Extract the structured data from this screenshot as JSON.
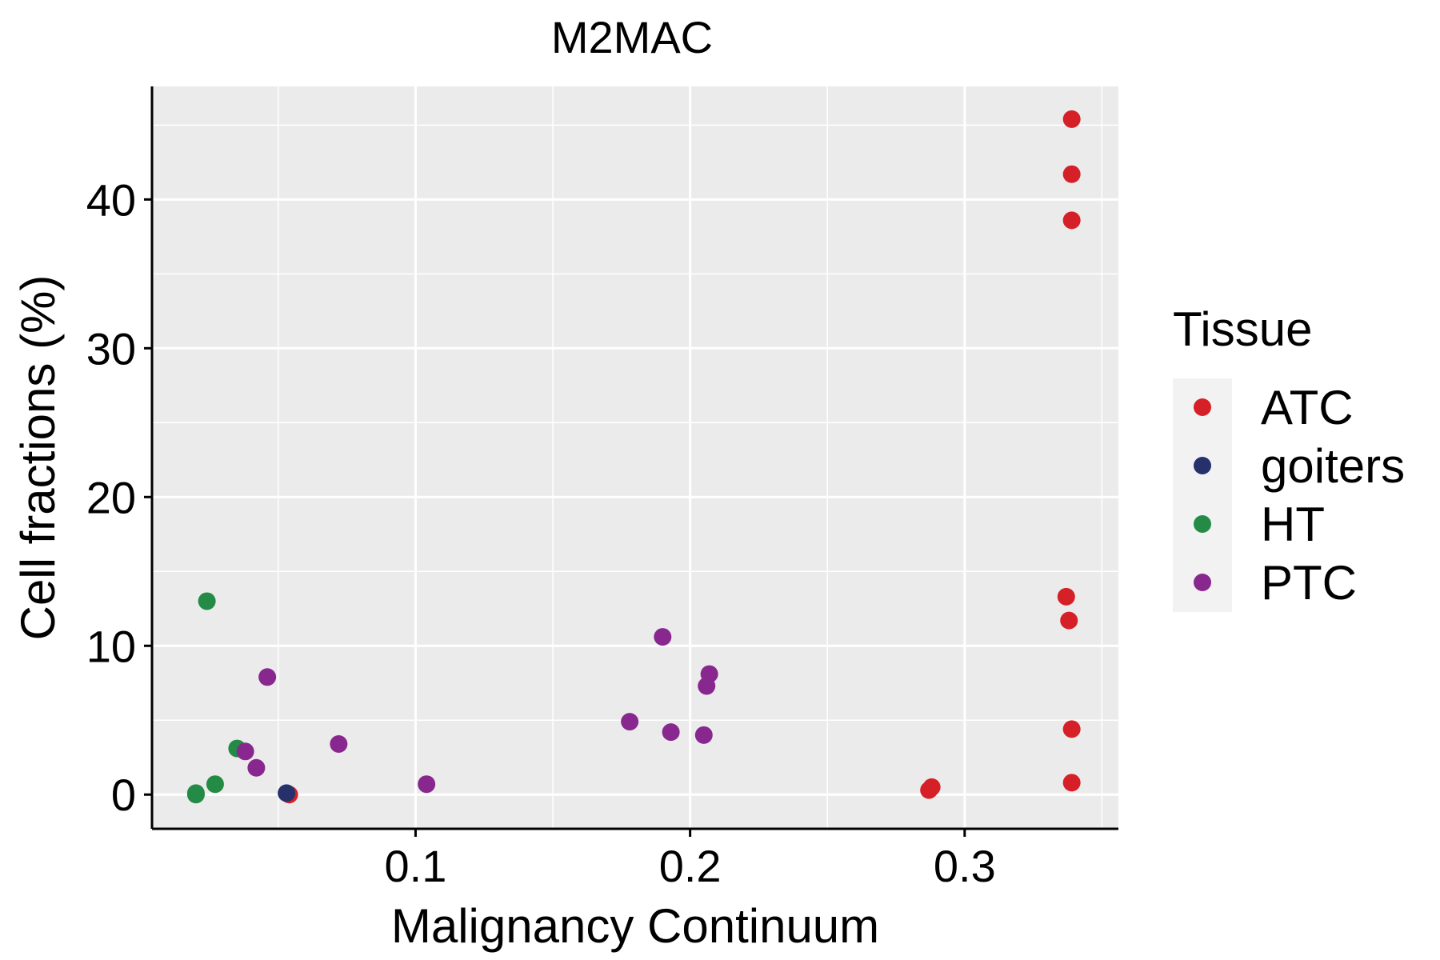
{
  "chart_data": {
    "type": "scatter",
    "title": "M2MAC",
    "xlabel": "Malignancy Continuum",
    "ylabel": "Cell fractions (%)",
    "xlim": [
      0.004,
      0.356
    ],
    "ylim": [
      -2.3,
      47.6
    ],
    "x_ticks": [
      0.1,
      0.2,
      0.3
    ],
    "x_tick_labels": [
      "0.1",
      "0.2",
      "0.3"
    ],
    "x_minor_ticks": [
      0.05,
      0.15,
      0.25,
      0.35
    ],
    "y_ticks": [
      0,
      10,
      20,
      30,
      40
    ],
    "y_tick_labels": [
      "0",
      "10",
      "20",
      "30",
      "40"
    ],
    "y_minor_ticks": [
      5,
      15,
      25,
      35,
      45
    ],
    "grid": true,
    "legend": {
      "title": "Tissue",
      "position": "right",
      "entries": [
        {
          "name": "ATC",
          "color": "#d62027"
        },
        {
          "name": "goiters",
          "color": "#26306b"
        },
        {
          "name": "HT",
          "color": "#238b45"
        },
        {
          "name": "PTC",
          "color": "#88288f"
        }
      ]
    },
    "series": [
      {
        "name": "ATC",
        "color": "#d62027",
        "points": [
          {
            "x": 0.339,
            "y": 45.4
          },
          {
            "x": 0.339,
            "y": 41.7
          },
          {
            "x": 0.339,
            "y": 38.6
          },
          {
            "x": 0.337,
            "y": 13.3
          },
          {
            "x": 0.338,
            "y": 11.7
          },
          {
            "x": 0.339,
            "y": 4.4
          },
          {
            "x": 0.339,
            "y": 0.8
          },
          {
            "x": 0.288,
            "y": 0.5
          },
          {
            "x": 0.287,
            "y": 0.3
          },
          {
            "x": 0.054,
            "y": 0.0
          }
        ]
      },
      {
        "name": "goiters",
        "color": "#26306b",
        "points": [
          {
            "x": 0.053,
            "y": 0.1
          }
        ]
      },
      {
        "name": "HT",
        "color": "#238b45",
        "points": [
          {
            "x": 0.024,
            "y": 13.0
          },
          {
            "x": 0.035,
            "y": 3.1
          },
          {
            "x": 0.027,
            "y": 0.7
          },
          {
            "x": 0.02,
            "y": 0.1
          },
          {
            "x": 0.02,
            "y": 0.0
          }
        ]
      },
      {
        "name": "PTC",
        "color": "#88288f",
        "points": [
          {
            "x": 0.19,
            "y": 10.6
          },
          {
            "x": 0.207,
            "y": 8.1
          },
          {
            "x": 0.206,
            "y": 7.3
          },
          {
            "x": 0.178,
            "y": 4.9
          },
          {
            "x": 0.193,
            "y": 4.2
          },
          {
            "x": 0.205,
            "y": 4.0
          },
          {
            "x": 0.046,
            "y": 7.9
          },
          {
            "x": 0.072,
            "y": 3.4
          },
          {
            "x": 0.038,
            "y": 2.9
          },
          {
            "x": 0.042,
            "y": 1.8
          },
          {
            "x": 0.104,
            "y": 0.7
          }
        ]
      }
    ]
  }
}
